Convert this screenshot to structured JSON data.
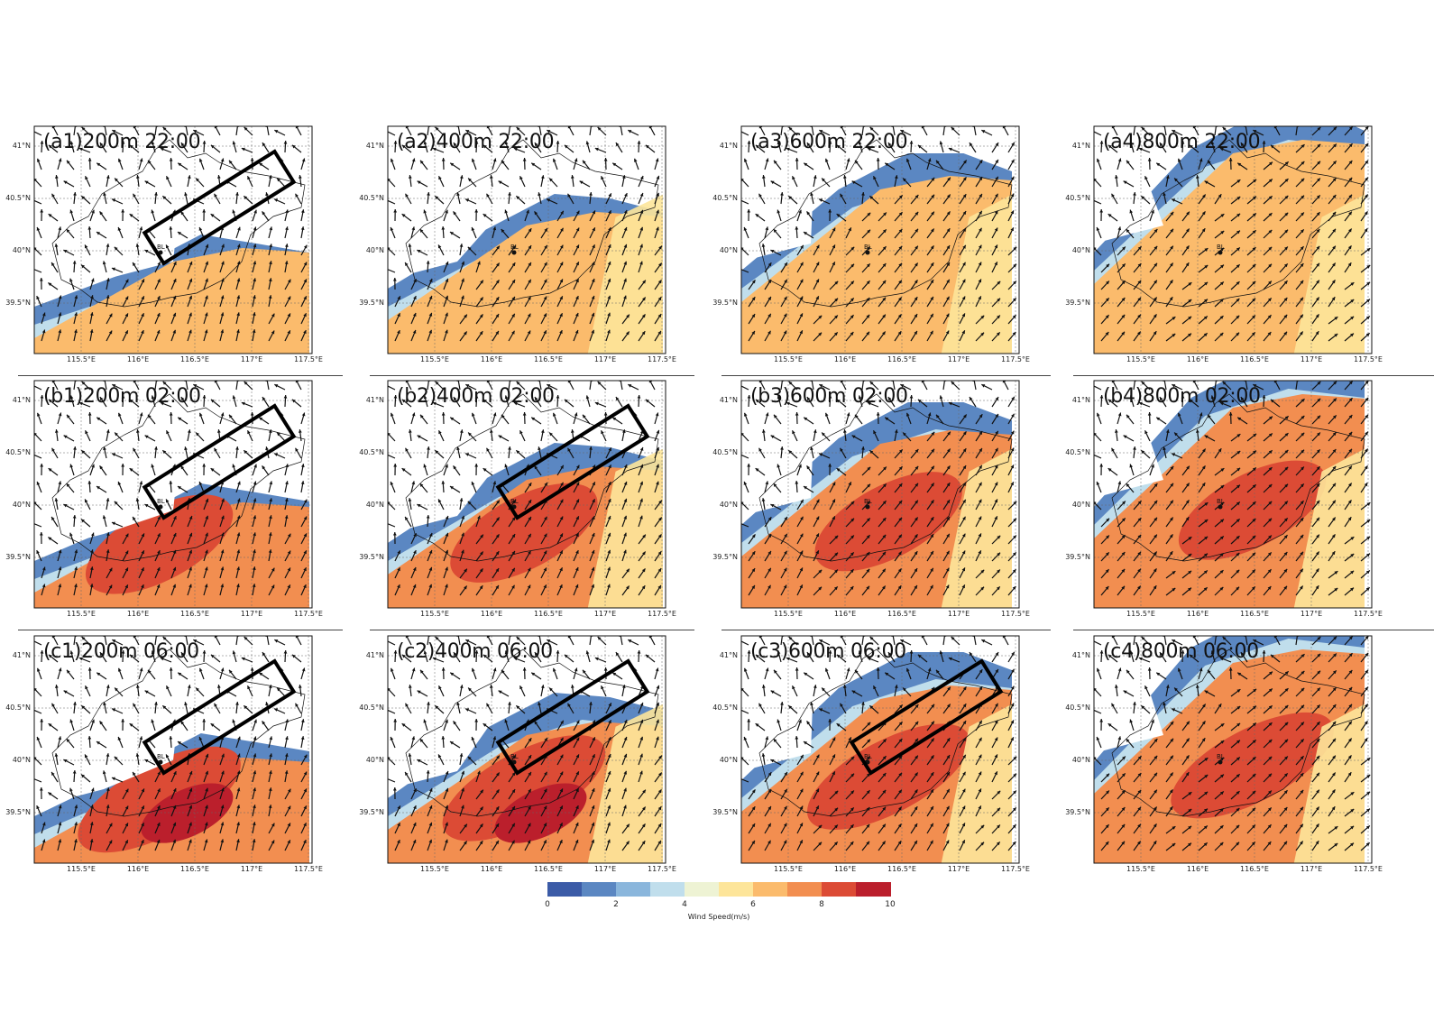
{
  "figure": {
    "rows": [
      {
        "key": "a",
        "panels": [
          {
            "id": "a1",
            "title": "(a1)200m 22:00",
            "box": true
          },
          {
            "id": "a2",
            "title": "(a2)400m 22:00",
            "box": false
          },
          {
            "id": "a3",
            "title": "(a3)600m 22:00",
            "box": false
          },
          {
            "id": "a4",
            "title": "(a4)800m 22:00",
            "box": false
          }
        ]
      },
      {
        "key": "b",
        "panels": [
          {
            "id": "b1",
            "title": "(b1)200m 02:00",
            "box": true
          },
          {
            "id": "b2",
            "title": "(b2)400m 02:00",
            "box": true
          },
          {
            "id": "b3",
            "title": "(b3)600m 02:00",
            "box": false
          },
          {
            "id": "b4",
            "title": "(b4)800m 02:00",
            "box": false
          }
        ]
      },
      {
        "key": "c",
        "panels": [
          {
            "id": "c1",
            "title": "(c1)200m 06:00",
            "box": true
          },
          {
            "id": "c2",
            "title": "(c2)400m 06:00",
            "box": true
          },
          {
            "id": "c3",
            "title": "(c3)600m 06:00",
            "box": true
          },
          {
            "id": "c4",
            "title": "(c4)800m 06:00",
            "box": false
          }
        ]
      }
    ],
    "lat_ticks": [
      "41°N",
      "40.5°N",
      "40°N",
      "39.5°N"
    ],
    "lon_ticks": [
      "115.5°E",
      "116°E",
      "116.5°E",
      "117°E",
      "117.5°E"
    ],
    "station_label": "BL"
  },
  "colorbar": {
    "label": "Wind Speed(m/s)",
    "ticks": [
      "0",
      "2",
      "4",
      "6",
      "8",
      "10"
    ],
    "colors": [
      "#3b5ba7",
      "#5b87c2",
      "#8ab6dc",
      "#c0deec",
      "#eef3d4",
      "#fde59a",
      "#fbbb6c",
      "#f28e50",
      "#dc4b35",
      "#bb1f2c"
    ]
  }
}
